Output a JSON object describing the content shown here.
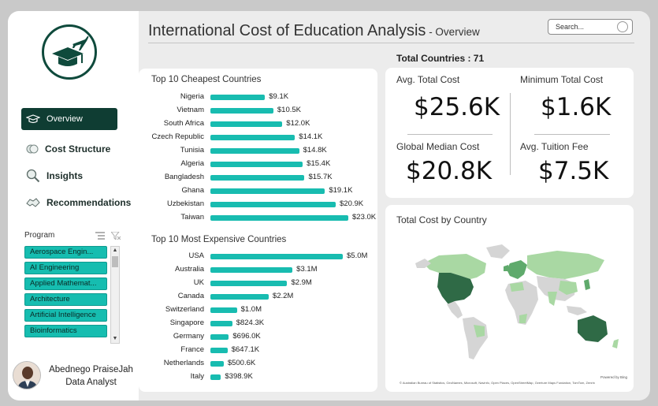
{
  "sidebar": {
    "nav": [
      {
        "label": "Overview"
      },
      {
        "label": "Cost Structure"
      },
      {
        "label": "Insights"
      },
      {
        "label": "Recommendations"
      }
    ],
    "program_label": "Program",
    "programs": [
      "Aerospace Engin...",
      "AI Engineering",
      "Applied Mathemat...",
      "Architecture",
      "Artificial Intelligence",
      "Bioinformatics"
    ],
    "profile_name": "Abednego PraiseJah",
    "profile_role": "Data Analyst"
  },
  "header": {
    "title": "International Cost of Education Analysis",
    "subtitle": " - Overview",
    "search_placeholder": "Search...",
    "total_countries_label": "Total Countries : ",
    "total_countries_value": "71"
  },
  "cheapest": {
    "title": "Top 10 Cheapest Countries",
    "chart_data": {
      "type": "bar",
      "categories": [
        "Nigeria",
        "Vietnam",
        "South Africa",
        "Czech Republic",
        "Tunisia",
        "Algeria",
        "Bangladesh",
        "Ghana",
        "Uzbekistan",
        "Taiwan"
      ],
      "values": [
        9.1,
        10.5,
        12.0,
        14.1,
        14.8,
        15.4,
        15.7,
        19.1,
        20.9,
        23.0
      ],
      "value_labels": [
        "$9.1K",
        "$10.5K",
        "$12.0K",
        "$14.1K",
        "$14.8K",
        "$15.4K",
        "$15.7K",
        "$19.1K",
        "$20.9K",
        "$23.0K"
      ],
      "unit": "K"
    }
  },
  "expensive": {
    "title": "Top 10 Most Expensive Countries",
    "chart_data": {
      "type": "bar",
      "categories": [
        "USA",
        "Australia",
        "UK",
        "Canada",
        "Switzerland",
        "Singapore",
        "Germany",
        "France",
        "Netherlands",
        "Italy"
      ],
      "values": [
        5000,
        3100,
        2900,
        2200,
        1000,
        824.3,
        696.0,
        647.1,
        500.6,
        398.9
      ],
      "value_labels": [
        "$5.0M",
        "$3.1M",
        "$2.9M",
        "$2.2M",
        "$1.0M",
        "$824.3K",
        "$696.0K",
        "$647.1K",
        "$500.6K",
        "$398.9K"
      ],
      "unit": "K"
    }
  },
  "kpis": {
    "avg_total_cost": {
      "label": "Avg. Total Cost",
      "value": "$25.6K"
    },
    "min_total_cost": {
      "label": "Minimum Total Cost",
      "value": "$1.6K"
    },
    "global_median_cost": {
      "label": "Global Median Cost",
      "value": "$20.8K"
    },
    "avg_tuition_fee": {
      "label": "Avg. Tuition Fee",
      "value": "$7.5K"
    }
  },
  "map": {
    "title": "Total Cost by Country",
    "powered_by": "Powered by Bing",
    "credit": "© Australian Bureau of Statistics, GeoNames, Microsoft, Navinfo, Open Places, OpenStreetMap, Overture Maps Fundation, TomTom, Zenrin",
    "colors": {
      "high": "#2f6a46",
      "mid": "#5faa6c",
      "low": "#a9d8a3",
      "none": "#d5d5d5"
    }
  },
  "colors": {
    "accent": "#18bcb0",
    "brand_dark": "#0f3d33"
  }
}
